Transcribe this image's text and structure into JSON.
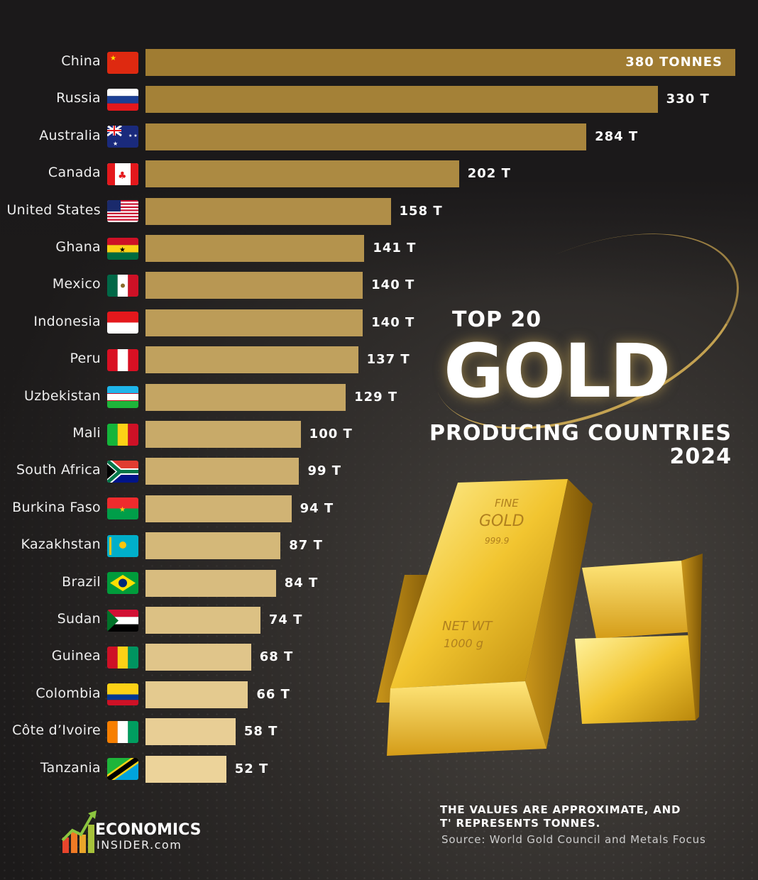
{
  "chart_data": {
    "type": "bar",
    "orientation": "horizontal",
    "categories": [
      "China",
      "Russia",
      "Australia",
      "Canada",
      "United States",
      "Ghana",
      "Mexico",
      "Indonesia",
      "Peru",
      "Uzbekistan",
      "Mali",
      "South Africa",
      "Burkina Faso",
      "Kazakhstan",
      "Brazil",
      "Sudan",
      "Guinea",
      "Colombia",
      "Côte d’Ivoire",
      "Tanzania"
    ],
    "values": [
      380,
      330,
      284,
      202,
      158,
      141,
      140,
      140,
      137,
      129,
      100,
      99,
      94,
      87,
      84,
      74,
      68,
      66,
      58,
      52
    ],
    "value_labels": [
      "380 TONNES",
      "330 T",
      "284 T",
      "202 T",
      "158 T",
      "141 T",
      "140 T",
      "140 T",
      "137 T",
      "129 T",
      "100 T",
      "99 T",
      "94 T",
      "87 T",
      "84 T",
      "74 T",
      "68 T",
      "66 T",
      "58 T",
      "52 T"
    ],
    "flag_icons": [
      "flag-china",
      "flag-russia",
      "flag-australia",
      "flag-canada",
      "flag-united-states",
      "flag-ghana",
      "flag-mexico",
      "flag-indonesia",
      "flag-peru",
      "flag-uzbekistan",
      "flag-mali",
      "flag-south-africa",
      "flag-burkina-faso",
      "flag-kazakhstan",
      "flag-brazil",
      "flag-sudan",
      "flag-guinea",
      "flag-colombia",
      "flag-cote-divoire",
      "flag-tanzania"
    ],
    "bar_color_start": "#a07c32",
    "bar_color_end": "#ecd39a",
    "xlim": [
      0,
      380
    ],
    "grid": false
  },
  "title": {
    "top": "TOP 20",
    "main": "GOLD",
    "sub": "PRODUCING COUNTRIES",
    "year": "2024"
  },
  "goldbar_stamp": {
    "line1": "FINE",
    "line2": "GOLD",
    "line3": "999.9",
    "line4": "NET WT",
    "line5": "1000 g"
  },
  "footer": {
    "note": "THE VALUES ARE APPROXIMATE, AND T' REPRESENTS TONNES.",
    "source": "Source: World Gold Council and Metals Focus"
  },
  "logo": {
    "line1": "ECONOMICS",
    "line2": "INSIDER.com"
  }
}
